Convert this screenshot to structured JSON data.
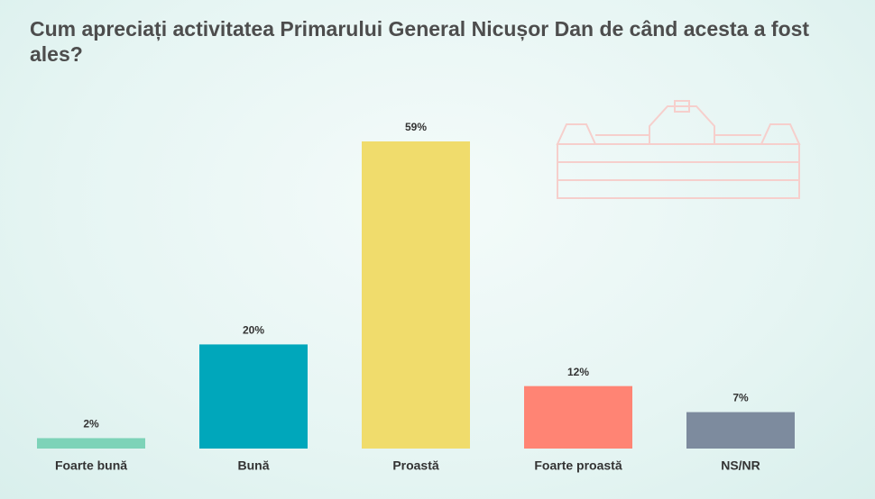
{
  "chart_data": {
    "type": "bar",
    "title": "Cum apreciați activitatea Primarului General Nicușor Dan de când acesta a fost ales?",
    "categories": [
      "Foarte bună",
      "Bună",
      "Proastă",
      "Foarte proastă",
      "NS/NR"
    ],
    "values": [
      2,
      20,
      59,
      12,
      7
    ],
    "value_labels": [
      "2%",
      "20%",
      "59%",
      "12%",
      "7%"
    ],
    "colors": [
      "#7dd3b8",
      "#00a7bb",
      "#f0dc6c",
      "#ff8474",
      "#7d8b9e"
    ]
  }
}
